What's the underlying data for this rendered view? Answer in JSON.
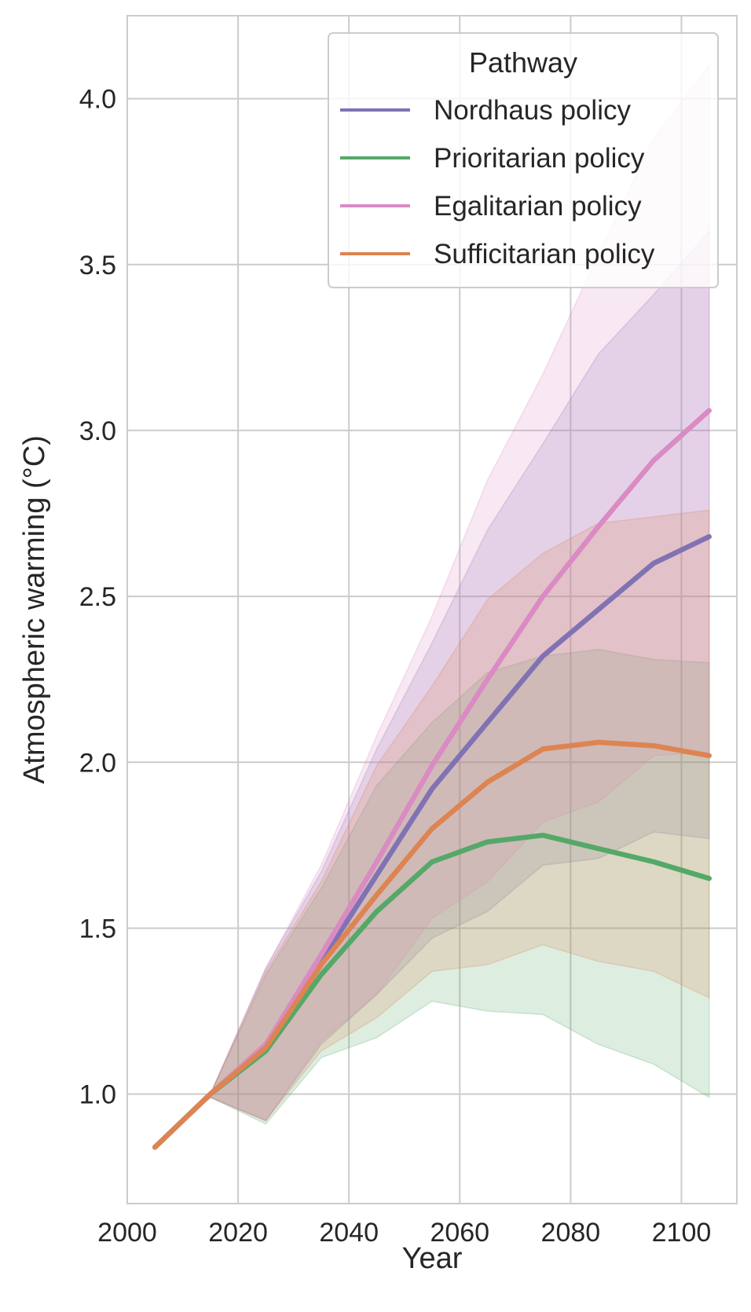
{
  "chart_data": {
    "type": "line",
    "xlabel": "Year",
    "ylabel": "Atmospheric warming (°C)",
    "xlim": [
      2000,
      2110
    ],
    "ylim": [
      0.67,
      4.25
    ],
    "xticks": [
      2000,
      2020,
      2040,
      2060,
      2080,
      2100
    ],
    "yticks": [
      1.0,
      1.5,
      2.0,
      2.5,
      3.0,
      3.5,
      4.0
    ],
    "xtick_labels": [
      "2000",
      "2020",
      "2040",
      "2060",
      "2080",
      "2100"
    ],
    "ytick_labels": [
      "1.0",
      "1.5",
      "2.0",
      "2.5",
      "3.0",
      "3.5",
      "4.0"
    ],
    "grid": true,
    "legend": {
      "title": "Pathway",
      "placement": "top-right"
    },
    "x": [
      2005,
      2015,
      2025,
      2035,
      2045,
      2055,
      2065,
      2075,
      2085,
      2095,
      2105
    ],
    "series": [
      {
        "name": "Nordhaus policy",
        "color": "#8172b3",
        "values": [
          0.84,
          1.0,
          1.14,
          1.4,
          1.66,
          1.92,
          2.12,
          2.32,
          2.46,
          2.6,
          2.68
        ],
        "lower": [
          0.84,
          0.99,
          0.92,
          1.15,
          1.3,
          1.47,
          1.55,
          1.69,
          1.71,
          1.79,
          1.77
        ],
        "upper": [
          0.84,
          1.0,
          1.38,
          1.67,
          2.04,
          2.36,
          2.7,
          2.96,
          3.23,
          3.41,
          3.6
        ]
      },
      {
        "name": "Prioritarian policy",
        "color": "#55a868",
        "values": [
          0.84,
          1.0,
          1.13,
          1.36,
          1.55,
          1.7,
          1.76,
          1.78,
          1.74,
          1.7,
          1.65
        ],
        "lower": [
          0.84,
          0.99,
          0.91,
          1.11,
          1.17,
          1.28,
          1.25,
          1.24,
          1.15,
          1.09,
          0.99
        ],
        "upper": [
          0.84,
          1.0,
          1.36,
          1.62,
          1.93,
          2.12,
          2.27,
          2.32,
          2.34,
          2.31,
          2.3
        ]
      },
      {
        "name": "Egalitarian policy",
        "color": "#da8bc3",
        "values": [
          0.84,
          1.0,
          1.15,
          1.42,
          1.7,
          1.99,
          2.25,
          2.5,
          2.71,
          2.91,
          3.06
        ],
        "lower": [
          0.84,
          0.99,
          0.92,
          1.16,
          1.3,
          1.53,
          1.64,
          1.82,
          1.88,
          2.02,
          2.03
        ],
        "upper": [
          0.84,
          1.0,
          1.38,
          1.69,
          2.08,
          2.44,
          2.85,
          3.17,
          3.53,
          3.88,
          4.1
        ]
      },
      {
        "name": "Sufficitarian policy",
        "color": "#dd8452",
        "values": [
          0.84,
          1.0,
          1.14,
          1.39,
          1.6,
          1.8,
          1.94,
          2.04,
          2.06,
          2.05,
          2.02
        ],
        "lower": [
          0.84,
          0.99,
          0.92,
          1.13,
          1.23,
          1.37,
          1.39,
          1.45,
          1.4,
          1.37,
          1.29
        ],
        "upper": [
          0.84,
          1.0,
          1.37,
          1.64,
          1.99,
          2.23,
          2.49,
          2.63,
          2.72,
          2.74,
          2.76
        ]
      }
    ]
  }
}
